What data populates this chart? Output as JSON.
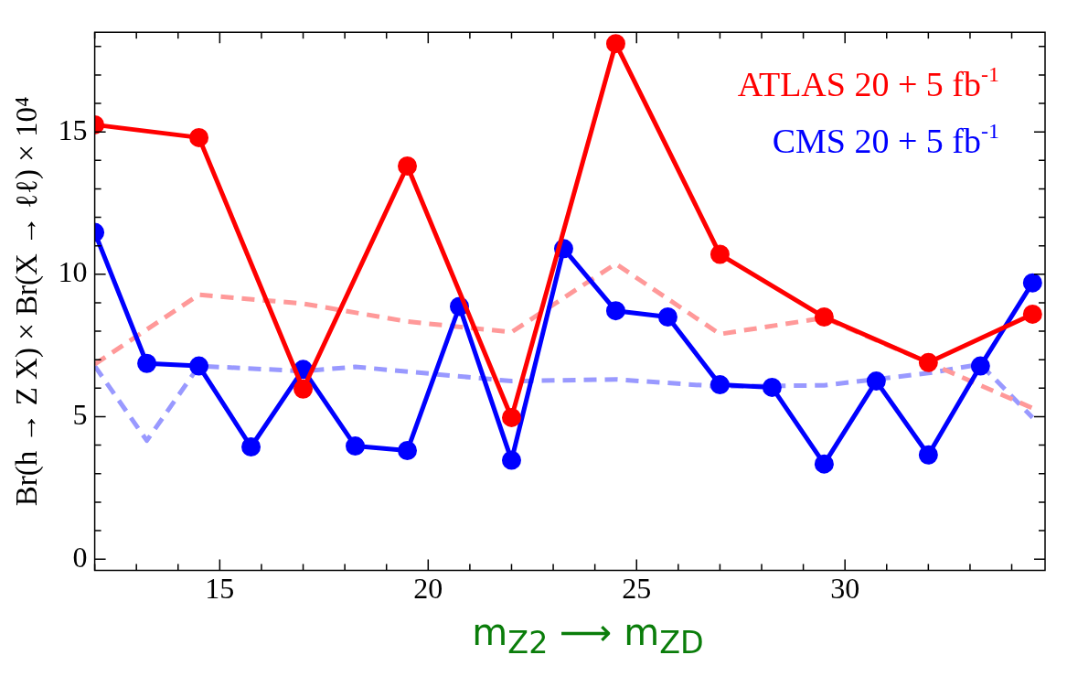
{
  "chart_data": {
    "type": "line",
    "xlabel": "m$_{Z2}$ ⟶ m$_{ZD}$",
    "ylabel": "Br(h → Z X) × Br(X → ℓℓ) × 10⁴",
    "xlim": [
      12,
      34.8
    ],
    "ylim": [
      -0.4,
      18.5
    ],
    "xticks": [
      {
        "value": 12,
        "label": null
      },
      {
        "value": 13,
        "label": null
      },
      {
        "value": 14,
        "label": null
      },
      15,
      {
        "value": 16,
        "label": null
      },
      {
        "value": 17,
        "label": null
      },
      {
        "value": 18,
        "label": null
      },
      {
        "value": 19,
        "label": null
      },
      20,
      {
        "value": 21,
        "label": null
      },
      {
        "value": 22,
        "label": null
      },
      {
        "value": 23,
        "label": null
      },
      {
        "value": 24,
        "label": null
      },
      25,
      {
        "value": 26,
        "label": null
      },
      {
        "value": 27,
        "label": null
      },
      {
        "value": 28,
        "label": null
      },
      {
        "value": 29,
        "label": null
      },
      30,
      {
        "value": 31,
        "label": null
      },
      {
        "value": 32,
        "label": null
      },
      {
        "value": 33,
        "label": null
      },
      {
        "value": 34,
        "label": null
      }
    ],
    "yticks": [
      0,
      {
        "value": 1,
        "label": null
      },
      {
        "value": 2,
        "label": null
      },
      {
        "value": 3,
        "label": null
      },
      {
        "value": 4,
        "label": null
      },
      5,
      {
        "value": 6,
        "label": null
      },
      {
        "value": 7,
        "label": null
      },
      {
        "value": 8,
        "label": null
      },
      {
        "value": 9,
        "label": null
      },
      10,
      {
        "value": 11,
        "label": null
      },
      {
        "value": 12,
        "label": null
      },
      {
        "value": 13,
        "label": null
      },
      {
        "value": 14,
        "label": null
      },
      15,
      {
        "value": 16,
        "label": null
      },
      {
        "value": 17,
        "label": null
      },
      {
        "value": 18,
        "label": null
      }
    ],
    "grid": false,
    "legend": "top right",
    "marker": "circle",
    "line_style": "solid",
    "series": [
      {
        "name": "ATLAS 20 + 5 fb$^{-1}$",
        "color": "#ff0000",
        "x": [
          12,
          14.5,
          17,
          19.5,
          22,
          24.5,
          27,
          29.5,
          32,
          34.5
        ],
        "values": [
          15.25,
          14.8,
          5.97,
          13.8,
          4.97,
          18.1,
          10.7,
          8.5,
          6.9,
          8.6
        ]
      },
      {
        "name": "CMS 20 + 5 fb$^{-1}$",
        "color": "#0000ff",
        "x": [
          12,
          13.25,
          14.5,
          15.75,
          17,
          18.25,
          19.5,
          20.75,
          22,
          23.25,
          24.5,
          25.75,
          27,
          28.25,
          29.5,
          30.75,
          32,
          33.25,
          34.5
        ],
        "values": [
          11.47,
          6.87,
          6.78,
          3.94,
          6.66,
          3.97,
          3.81,
          8.87,
          3.47,
          10.9,
          8.72,
          8.5,
          6.12,
          6.03,
          3.34,
          6.25,
          3.66,
          6.78,
          9.7
        ]
      },
      {
        "color": "#ff9999",
        "line_style": "dashed",
        "marker": "none",
        "x": [
          12,
          14.5,
          17,
          19.5,
          22,
          24.5,
          27,
          29.5,
          32,
          34.5
        ],
        "values": [
          6.84,
          9.28,
          8.97,
          8.34,
          7.97,
          10.37,
          7.9,
          8.47,
          6.9,
          5.3
        ]
      },
      {
        "color": "#9999ff",
        "line_style": "dashed",
        "marker": "none",
        "x": [
          12,
          13.25,
          14.5,
          17,
          18.25,
          22,
          24.5,
          27,
          29.5,
          32,
          33.25,
          34.5
        ],
        "values": [
          6.78,
          4.16,
          6.78,
          6.6,
          6.75,
          6.25,
          6.31,
          6.06,
          6.1,
          6.53,
          6.84,
          4.97
        ]
      }
    ]
  }
}
